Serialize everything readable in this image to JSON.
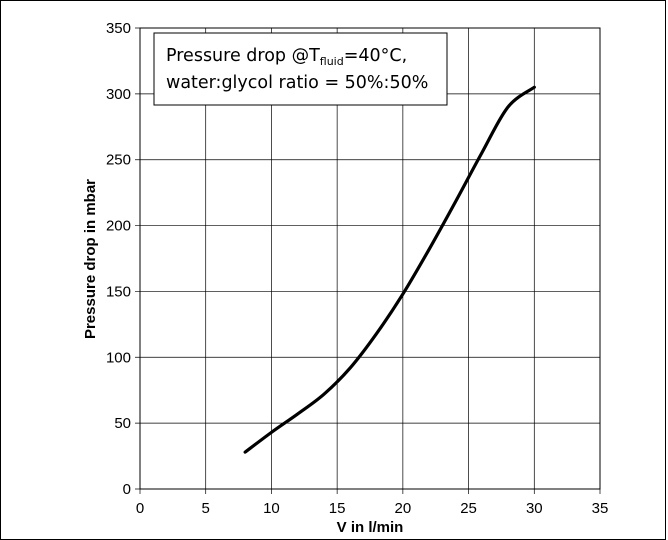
{
  "chart_data": {
    "type": "line",
    "title": "",
    "xlabel": "V in l/min",
    "ylabel": "Pressure drop in mbar",
    "xlim": [
      0,
      35
    ],
    "ylim": [
      0,
      350
    ],
    "x_ticks": [
      "0",
      "5",
      "10",
      "15",
      "20",
      "25",
      "30",
      "35"
    ],
    "y_ticks": [
      "0",
      "50",
      "100",
      "150",
      "200",
      "250",
      "300",
      "350"
    ],
    "grid": true,
    "legend": "none",
    "annotation": {
      "line1_prefix": "Pressure drop @T",
      "line1_sub": "fluid",
      "line1_suffix": "=40°C,",
      "line2": "water:glycol ratio = 50%:50%",
      "placement": "top-left"
    },
    "series": [
      {
        "x": [
          8,
          10,
          12,
          14,
          16,
          18,
          20,
          22,
          24,
          26,
          28,
          30
        ],
        "y": [
          28,
          43,
          57,
          72,
          92,
          118,
          148,
          182,
          218,
          255,
          290,
          305
        ],
        "color": "#000000"
      }
    ]
  }
}
